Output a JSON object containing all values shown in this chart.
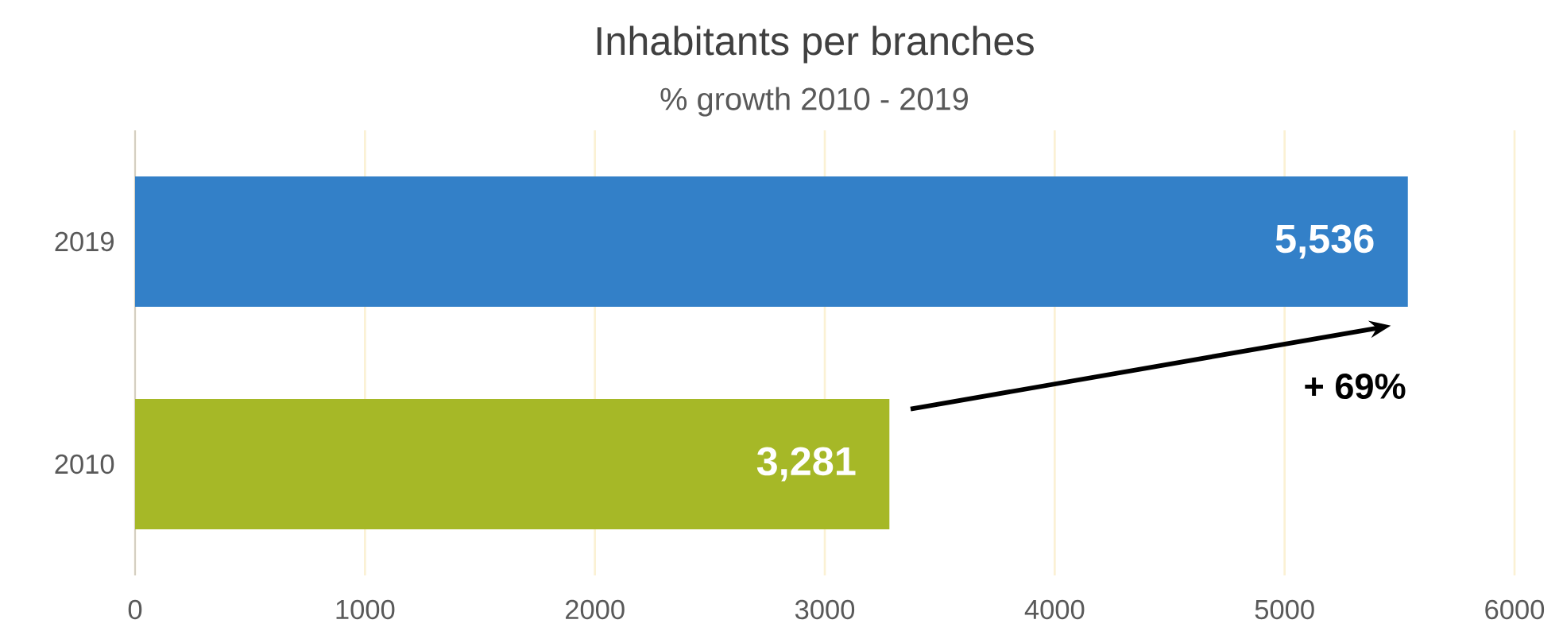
{
  "chart_data": {
    "type": "bar",
    "orientation": "horizontal",
    "title": "Inhabitants per branches",
    "subtitle": "% growth 2010 - 2019",
    "categories": [
      "2019",
      "2010"
    ],
    "values": [
      5536,
      3281
    ],
    "colors": [
      "#3380c8",
      "#a6b827"
    ],
    "value_labels": [
      "5,536",
      "3,281"
    ],
    "xlim": [
      0,
      6000
    ],
    "xticks": [
      0,
      1000,
      2000,
      3000,
      4000,
      5000,
      6000
    ],
    "grid": "x",
    "annotations": [
      "+ 69%"
    ]
  }
}
